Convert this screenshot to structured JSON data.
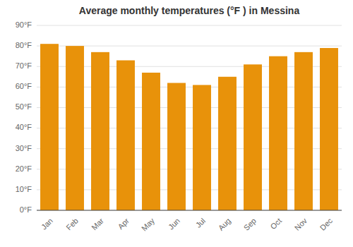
{
  "chart_data": {
    "type": "bar",
    "title": "Average monthly temperatures (°F ) in Messina",
    "categories": [
      "Jan",
      "Feb",
      "Mar",
      "Apr",
      "May",
      "Jun",
      "Jul",
      "Aug",
      "Sep",
      "Oct",
      "Nov",
      "Dec"
    ],
    "values": [
      81,
      80,
      77,
      73,
      67,
      62,
      61,
      65,
      71,
      75,
      77,
      79
    ],
    "color": "#E8920A",
    "ylim": [
      0,
      90
    ],
    "yticks": [
      {
        "value": 0,
        "label": "0°F"
      },
      {
        "value": 10,
        "label": "10°F"
      },
      {
        "value": 20,
        "label": "20°F"
      },
      {
        "value": 30,
        "label": "30°F"
      },
      {
        "value": 40,
        "label": "40°F"
      },
      {
        "value": 50,
        "label": "50°F"
      },
      {
        "value": 60,
        "label": "60°F"
      },
      {
        "value": 70,
        "label": "70°F"
      },
      {
        "value": 80,
        "label": "80°F"
      },
      {
        "value": 90,
        "label": "90°F"
      }
    ],
    "grid": true
  }
}
